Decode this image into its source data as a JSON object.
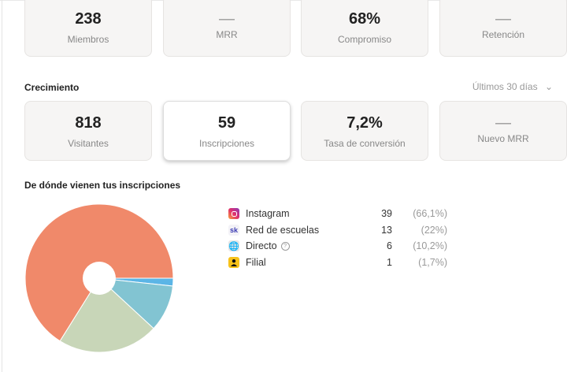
{
  "overview": [
    {
      "value": "238",
      "label": "Miembros"
    },
    {
      "value": "—",
      "label": "MRR"
    },
    {
      "value": "68%",
      "label": "Compromiso"
    },
    {
      "value": "—",
      "label": "Retención"
    }
  ],
  "growth": {
    "title": "Crecimiento",
    "period": "Últimos 30 días",
    "cards": [
      {
        "value": "818",
        "label": "Visitantes"
      },
      {
        "value": "59",
        "label": "Inscripciones",
        "selected": true
      },
      {
        "value": "7,2%",
        "label": "Tasa de conversión"
      },
      {
        "value": "—",
        "label": "Nuevo MRR"
      }
    ]
  },
  "sources": {
    "title": "De dónde vienen tus inscripciones",
    "items": [
      {
        "name": "Instagram",
        "count": "39",
        "pct": "(66,1%)",
        "icon": "instagram-icon"
      },
      {
        "name": "Red de escuelas",
        "count": "13",
        "pct": "(22%)",
        "icon": "sk-network-icon",
        "icon_text": "sk"
      },
      {
        "name": "Directo",
        "count": "6",
        "pct": "(10,2%)",
        "icon": "globe-icon"
      },
      {
        "name": "Filial",
        "count": "1",
        "pct": "(1,7%)",
        "icon": "person-icon"
      }
    ]
  },
  "chart_data": {
    "type": "pie",
    "donut": true,
    "categories": [
      "Instagram",
      "Red de escuelas",
      "Directo",
      "Filial"
    ],
    "values": [
      39,
      13,
      6,
      1
    ],
    "colors": [
      "#F0896A",
      "#C8D6B8",
      "#82C4D2",
      "#5BB5E6"
    ]
  }
}
